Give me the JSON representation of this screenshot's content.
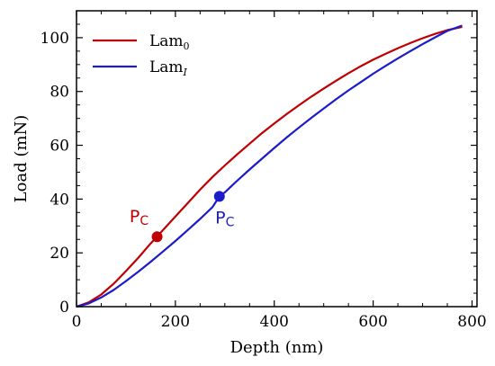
{
  "chart_data": {
    "type": "line",
    "xlabel": "Depth (nm)",
    "ylabel": "Load (mN)",
    "xlim": [
      0,
      810
    ],
    "ylim": [
      0,
      110
    ],
    "xticks": [
      0,
      200,
      400,
      600,
      800
    ],
    "yticks": [
      0,
      20,
      40,
      60,
      80,
      100
    ],
    "grid": false,
    "legend_position": "top-left",
    "series": [
      {
        "name_main": "Lam",
        "name_sub": "0",
        "color": "#c00000",
        "x": [
          0,
          25,
          50,
          75,
          100,
          125,
          150,
          163,
          175,
          200,
          225,
          250,
          275,
          300,
          325,
          350,
          375,
          400,
          425,
          450,
          475,
          500,
          525,
          550,
          575,
          600,
          625,
          650,
          675,
          700,
          725,
          750,
          780
        ],
        "y": [
          0,
          1.6,
          4.5,
          8.5,
          13.2,
          18.2,
          23.5,
          26,
          28.5,
          33.5,
          38.5,
          43.5,
          48.2,
          52.5,
          56.6,
          60.6,
          64.5,
          68.1,
          71.6,
          74.9,
          78.1,
          81.1,
          84,
          86.8,
          89.4,
          91.8,
          94,
          96.1,
          98,
          99.8,
          101.4,
          102.8,
          104
        ]
      },
      {
        "name_main": "Lam",
        "name_sub": "I",
        "color": "#1c1cc8",
        "x": [
          0,
          25,
          50,
          75,
          100,
          125,
          150,
          175,
          200,
          225,
          250,
          275,
          289,
          300,
          325,
          350,
          375,
          400,
          425,
          450,
          475,
          500,
          525,
          550,
          575,
          600,
          625,
          650,
          675,
          700,
          725,
          750,
          780
        ],
        "y": [
          0,
          1.2,
          3.4,
          6.2,
          9.5,
          13,
          16.7,
          20.5,
          24.4,
          28.5,
          32.6,
          37,
          41,
          42.5,
          46.8,
          51,
          55,
          59,
          62.9,
          66.6,
          70.2,
          73.7,
          77.1,
          80.4,
          83.5,
          86.6,
          89.5,
          92.3,
          95,
          97.6,
          100.1,
          102.5,
          104.5
        ]
      }
    ],
    "annotations": [
      {
        "label_main": "P",
        "label_sub": "C",
        "x": 163,
        "y": 26,
        "color": "#c00000"
      },
      {
        "label_main": "P",
        "label_sub": "C",
        "x": 289,
        "y": 41,
        "color": "#1c1cc8"
      }
    ]
  }
}
